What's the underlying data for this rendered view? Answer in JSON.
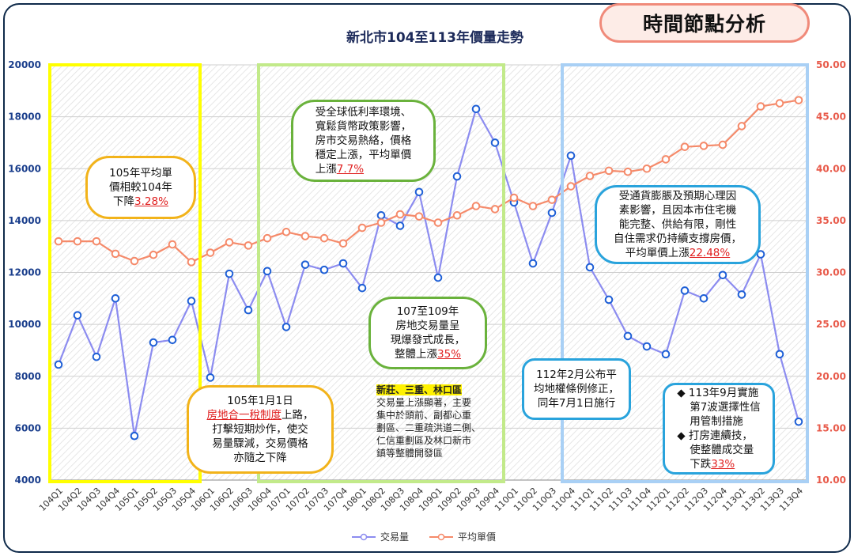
{
  "badge": "時間節點分析",
  "chart_data": {
    "type": "line",
    "title": "新北市104至113年價量走勢",
    "categories": [
      "104Q1",
      "104Q2",
      "104Q3",
      "104Q4",
      "105Q1",
      "105Q2",
      "105Q3",
      "105Q4",
      "106Q1",
      "106Q2",
      "106Q3",
      "106Q4",
      "107Q1",
      "107Q2",
      "107Q3",
      "107Q4",
      "108Q1",
      "108Q2",
      "108Q3",
      "108Q4",
      "109Q1",
      "109Q2",
      "109Q3",
      "109Q4",
      "110Q1",
      "110Q2",
      "110Q3",
      "110Q4",
      "111Q1",
      "111Q2",
      "111Q3",
      "111Q4",
      "112Q1",
      "112Q2",
      "112Q3",
      "112Q4",
      "113Q1",
      "113Q2",
      "113Q3",
      "113Q4"
    ],
    "left_axis": {
      "min": 4000,
      "max": 20000,
      "ticks": [
        "4000",
        "6000",
        "8000",
        "10000",
        "12000",
        "14000",
        "16000",
        "18000",
        "20000"
      ]
    },
    "right_axis": {
      "min": 10,
      "max": 50,
      "ticks": [
        "10.00",
        "15.00",
        "20.00",
        "25.00",
        "30.00",
        "35.00",
        "40.00",
        "45.00",
        "50.00"
      ]
    },
    "series": [
      {
        "name": "交易量",
        "axis": "left",
        "color": "#8c8cf0",
        "values": [
          8450,
          10350,
          8750,
          11000,
          5700,
          9300,
          9400,
          10900,
          7950,
          11950,
          10550,
          12050,
          9900,
          12300,
          12100,
          12350,
          11400,
          14200,
          13800,
          15100,
          11800,
          15700,
          18300,
          17000,
          14700,
          12350,
          14300,
          16500,
          12200,
          10950,
          9550,
          9150,
          8850,
          11300,
          11000,
          11900,
          11150,
          12700,
          8850,
          6250
        ]
      },
      {
        "name": "平均單價",
        "axis": "right",
        "color": "#f58a6a",
        "values": [
          33.0,
          33.0,
          33.0,
          31.8,
          31.1,
          31.7,
          32.7,
          31.0,
          31.9,
          32.9,
          32.6,
          33.3,
          33.9,
          33.5,
          33.3,
          32.8,
          34.3,
          34.8,
          35.6,
          35.4,
          34.8,
          35.5,
          36.4,
          36.1,
          37.2,
          36.4,
          37.0,
          38.3,
          39.3,
          39.8,
          39.7,
          40.0,
          40.9,
          42.1,
          42.2,
          42.3,
          44.1,
          46.0,
          46.3,
          46.6
        ]
      }
    ],
    "periods": [
      {
        "from": 0,
        "to": 7,
        "color": "#ffff00"
      },
      {
        "from": 11,
        "to": 23,
        "color": "#c2ea8a"
      },
      {
        "from": 27,
        "to": 39,
        "color": "#a9d0f5"
      }
    ]
  },
  "notes": {
    "n1": {
      "lines": [
        "105年平均單",
        "價相較104年",
        "下降"
      ],
      "hl": "3.28%"
    },
    "n2": {
      "pre": "105年1月1日",
      "hl": "房地合一稅制度",
      "mid": "上路，",
      "lines": [
        "打擊短期炒作，使交",
        "易量驟減，交易價格",
        "亦隨之下降"
      ]
    },
    "n3": {
      "lines": [
        "受全球低利率環境、",
        "寬鬆貨幣政策影響，",
        "房市交易熱絡，價格",
        "穩定上漲，平均單價"
      ],
      "pre_hl": "上漲",
      "hl": "7.7%"
    },
    "n4": {
      "lines": [
        "107至109年",
        "房地交易量呈",
        "現爆發式成長，"
      ],
      "pre_hl": "整體上漲",
      "hl": "35%"
    },
    "n5": {
      "hl": "新莊、三重、林口區",
      "lines": [
        "交易量上漲顯著，主要",
        "集中於頭前、副都心重",
        "劃區、二重疏洪道二側、",
        "仁信重劃區及林口新市",
        "鎮等整體開發區"
      ]
    },
    "n6": {
      "lines": [
        "112年2月公布平",
        "均地權條例修正，",
        "同年7月1日施行"
      ]
    },
    "n7": {
      "lines": [
        "受通貨膨脹及預期心理因",
        "素影響，且因本市住宅機",
        "能完整、供給有限，剛性",
        "自住需求仍持續支撐房價，"
      ],
      "pre_hl": "平均單價上漲",
      "hl": "22.48%"
    },
    "n8": {
      "b1": [
        "113年9月實施",
        "第7波選擇性信",
        "用管制措施"
      ],
      "b2": [
        "打房連續技，",
        "使整體成交量"
      ],
      "pre_hl": "下跌",
      "hl": "33%",
      "bullet": "◆"
    }
  },
  "legend": {
    "s1": "交易量",
    "s2": "平均單價"
  }
}
